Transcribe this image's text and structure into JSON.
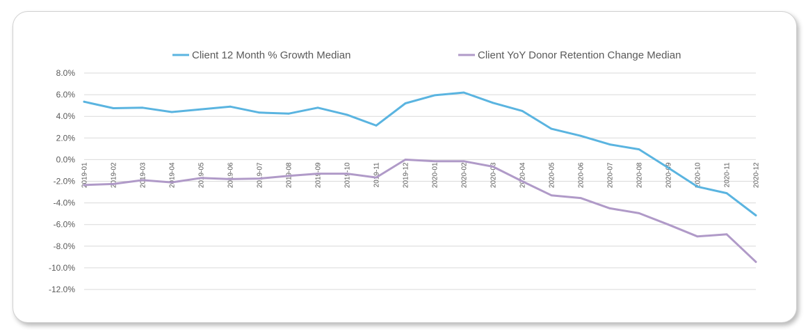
{
  "chart_data": {
    "type": "line",
    "categories": [
      "2019-01",
      "2019-02",
      "2019-03",
      "2019-04",
      "2019-05",
      "2019-06",
      "2019-07",
      "2019-08",
      "2019-09",
      "2019-10",
      "2019-11",
      "2019-12",
      "2020-01",
      "2020-02",
      "2020-03",
      "2020-04",
      "2020-05",
      "2020-06",
      "2020-07",
      "2020-08",
      "2020-09",
      "2020-10",
      "2020-11",
      "2020-12"
    ],
    "series": [
      {
        "name": "Client 12 Month % Growth Median",
        "color": "#5ab4e0",
        "values": [
          5.35,
          4.75,
          4.8,
          4.4,
          4.65,
          4.9,
          4.35,
          4.25,
          4.8,
          4.15,
          3.15,
          5.2,
          5.95,
          6.2,
          5.25,
          4.5,
          2.85,
          2.2,
          1.4,
          0.95,
          -0.75,
          -2.5,
          -3.1,
          -5.15
        ]
      },
      {
        "name": "Client YoY Donor Retention Change Median",
        "color": "#b09ac8",
        "values": [
          -2.35,
          -2.25,
          -1.9,
          -2.1,
          -1.7,
          -1.8,
          -1.75,
          -1.5,
          -1.3,
          -1.3,
          -1.65,
          0.0,
          -0.15,
          -0.15,
          -0.65,
          -2.0,
          -3.3,
          -3.55,
          -4.5,
          -4.95,
          -6.0,
          -7.1,
          -6.9,
          -9.45
        ]
      }
    ],
    "ytick_labels": [
      "8.0%",
      "6.0%",
      "4.0%",
      "2.0%",
      "0.0%",
      "-2.0%",
      "-4.0%",
      "-6.0%",
      "-8.0%",
      "-10.0%",
      "-12.0%"
    ],
    "ytick_values": [
      8,
      6,
      4,
      2,
      0,
      -2,
      -4,
      -6,
      -8,
      -10,
      -12
    ],
    "ylim": [
      -12,
      8
    ],
    "grid": true,
    "legend_position": "top",
    "title": "",
    "xlabel": "",
    "ylabel": ""
  },
  "colors": {
    "grid": "#d9d9d9",
    "axis_text": "#595959"
  }
}
